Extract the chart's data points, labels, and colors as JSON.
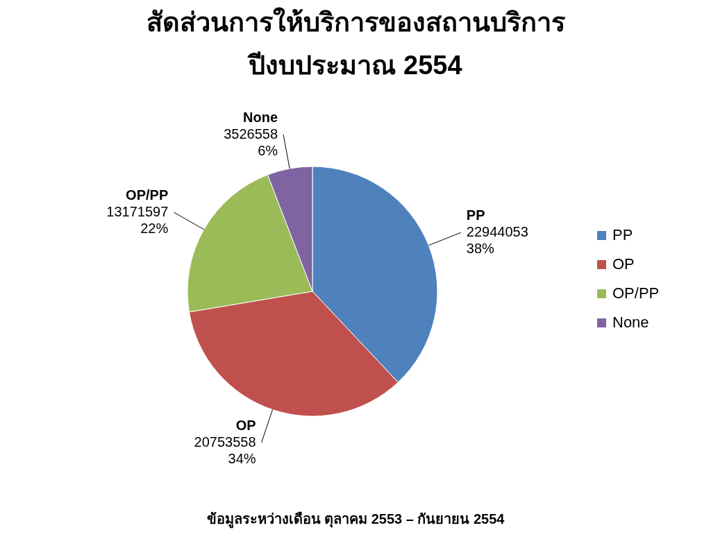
{
  "chart_data": {
    "type": "pie",
    "title": "สัดส่วนการให้บริการของสถานบริการ\nปีงบประมาณ 2554",
    "categories": [
      "PP",
      "OP",
      "OP/PP",
      "None"
    ],
    "values": [
      22944053,
      20753558,
      13171597,
      3526558
    ],
    "colors": [
      "#4f81bd",
      "#c0504d",
      "#9bbb59",
      "#8064a2"
    ],
    "value_labels": [
      "22944053\n38%",
      "20753558\n34%",
      "13171597\n22%",
      "3526558\n6%"
    ],
    "legend": "right",
    "annotations": [
      "ข้อมูลระหว่างเดือน ตุลาคม 2553 – กันยายน 2554"
    ]
  }
}
